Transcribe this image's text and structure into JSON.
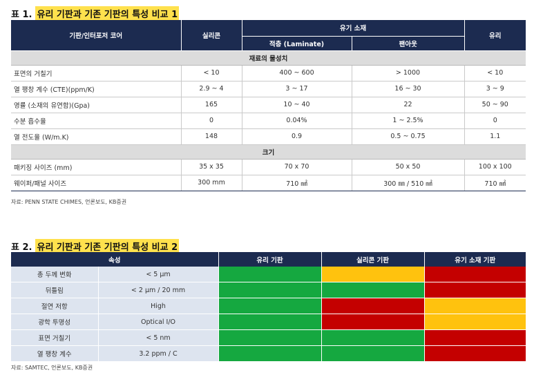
{
  "table1": {
    "title_prefix": "표 1.",
    "title": "유리 기판과 기존 기판의 특성 비교 1",
    "headers": {
      "col1": "기판/인터포저 코어",
      "col2": "실리콘",
      "group": "유기 소재",
      "sub1": "적층 (Laminate)",
      "sub2": "팬아웃",
      "col5": "유리"
    },
    "section1": "재료의 물성치",
    "rows1": [
      {
        "label": "표면의 거칠기",
        "v": [
          "< 10",
          "400 ~ 600",
          "> 1000",
          "< 10"
        ]
      },
      {
        "label": "열 팽창 계수 (CTE)(ppm/K)",
        "v": [
          "2.9 ~ 4",
          "3 ~ 17",
          "16 ~ 30",
          "3 ~ 9"
        ]
      },
      {
        "label": "영률 (소재의 유연함)(Gpa)",
        "v": [
          "165",
          "10 ~ 40",
          "22",
          "50 ~ 90"
        ]
      },
      {
        "label": "수분 흡수율",
        "v": [
          "0",
          "0.04%",
          "1 ~ 2.5%",
          "0"
        ]
      },
      {
        "label": "열 전도율 (W/m.K)",
        "v": [
          "148",
          "0.9",
          "0.5 ~ 0.75",
          "1.1"
        ]
      }
    ],
    "section2": "크기",
    "rows2": [
      {
        "label": "패키징 사이즈 (mm)",
        "v": [
          "35 x 35",
          "70 x 70",
          "50 x 50",
          "100 x 100"
        ]
      },
      {
        "label": "웨이퍼/패널 사이즈",
        "v": [
          "300 mm",
          "710 ㎟",
          "300 ㎜ / 510 ㎟",
          "710 ㎟"
        ]
      }
    ],
    "source": "자료: PENN STATE CHIMES, 언론보도, KB증권"
  },
  "table2": {
    "title_prefix": "표 2.",
    "title": "유리 기판과 기존 기판의 특성 비교 2",
    "headers": {
      "attr": "속성",
      "glass": "유리 기판",
      "silicon": "실리콘 기판",
      "organic": "유기 소재 기판"
    },
    "rows": [
      {
        "label": "총 두께 변화",
        "value": "< 5 μm",
        "colors": [
          "green",
          "yellow",
          "red"
        ]
      },
      {
        "label": "뒤틀림",
        "value": "< 2 μm / 20 mm",
        "colors": [
          "green",
          "green",
          "red"
        ]
      },
      {
        "label": "절연 저항",
        "value": "High",
        "colors": [
          "green",
          "red",
          "yellow"
        ]
      },
      {
        "label": "광학 투명성",
        "value": "Optical I/O",
        "colors": [
          "green",
          "red",
          "yellow"
        ]
      },
      {
        "label": "표면 거칠기",
        "value": "< 5 nm",
        "colors": [
          "green",
          "green",
          "red"
        ]
      },
      {
        "label": "열 팽창 계수",
        "value": "3.2 ppm / C",
        "colors": [
          "green",
          "green",
          "red"
        ]
      }
    ],
    "color_values": {
      "green": "#15a840",
      "yellow": "#ffc20e",
      "red": "#c40000"
    },
    "source": "자료: SAMTEC, 언론보도, KB증권"
  }
}
